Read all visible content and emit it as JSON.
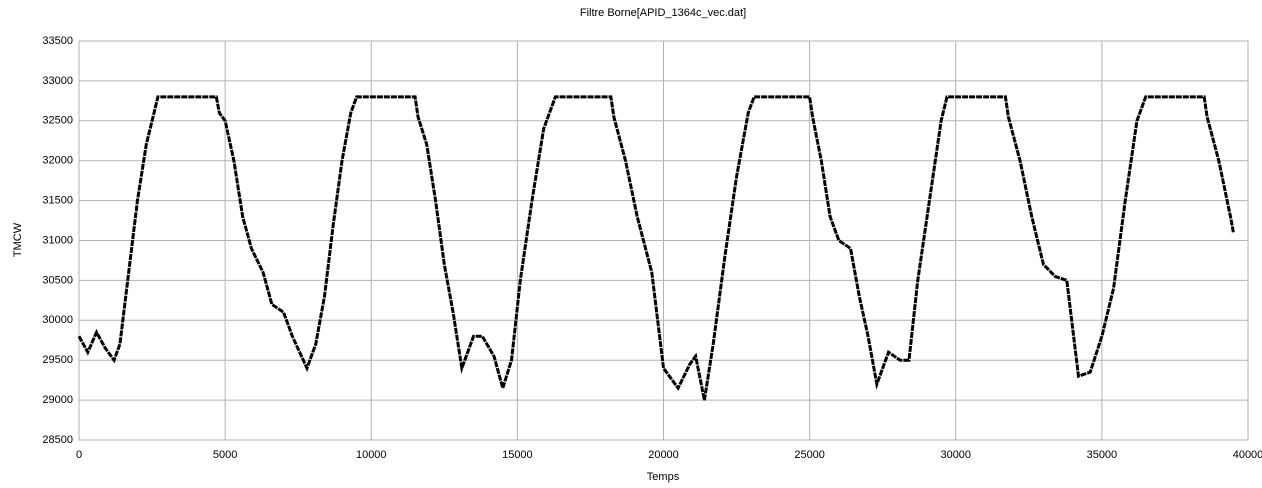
{
  "chart_data": {
    "type": "line",
    "title": "Filtre Borne[APID_1364c_vec.dat]",
    "x_label": "Temps",
    "y_label": "TMCW",
    "x": [
      0,
      300,
      600,
      900,
      1200,
      1400,
      1700,
      2000,
      2300,
      2600,
      2700,
      4700,
      4800,
      5000,
      5300,
      5600,
      5900,
      6300,
      6600,
      7000,
      7300,
      7800,
      8100,
      8400,
      8700,
      9000,
      9300,
      9500,
      11500,
      11600,
      11900,
      12200,
      12500,
      12800,
      13100,
      13500,
      13800,
      14200,
      14500,
      14800,
      15100,
      15500,
      15900,
      16200,
      16300,
      18200,
      18300,
      18700,
      19100,
      19600,
      20000,
      20500,
      20900,
      21100,
      21400,
      21700,
      22100,
      22500,
      22900,
      23100,
      25000,
      25100,
      25400,
      25700,
      26000,
      26400,
      26700,
      27000,
      27300,
      27700,
      28100,
      28400,
      28700,
      29100,
      29500,
      29700,
      31700,
      31800,
      32200,
      32600,
      33000,
      33400,
      33800,
      34200,
      34600,
      35000,
      35400,
      35800,
      36200,
      36500,
      38500,
      38600,
      39000,
      39400,
      39500
    ],
    "series": [
      {
        "name": "TMCW",
        "color": "#000000",
        "values": [
          29800,
          29600,
          29850,
          29650,
          29500,
          29700,
          30600,
          31500,
          32200,
          32650,
          32800,
          32800,
          32600,
          32500,
          32000,
          31300,
          30900,
          30600,
          30200,
          30100,
          29800,
          29400,
          29700,
          30300,
          31200,
          32000,
          32600,
          32800,
          32800,
          32550,
          32200,
          31500,
          30700,
          30100,
          29400,
          29800,
          29800,
          29550,
          29150,
          29500,
          30500,
          31500,
          32400,
          32700,
          32800,
          32800,
          32550,
          32000,
          31300,
          30600,
          29400,
          29150,
          29450,
          29550,
          29000,
          29700,
          30800,
          31800,
          32600,
          32800,
          32800,
          32550,
          32000,
          31300,
          31000,
          30900,
          30300,
          29800,
          29200,
          29600,
          29500,
          29500,
          30500,
          31500,
          32500,
          32800,
          32800,
          32550,
          32000,
          31300,
          30700,
          30550,
          30500,
          29300,
          29350,
          29800,
          30400,
          31500,
          32500,
          32800,
          32800,
          32550,
          32000,
          31300,
          31100
        ]
      }
    ],
    "xlim": [
      0,
      40000
    ],
    "xticks": [
      0,
      5000,
      10000,
      15000,
      20000,
      25000,
      30000,
      35000,
      40000
    ],
    "ylim": [
      28500,
      33500
    ],
    "yticks": [
      28500,
      29000,
      29500,
      30000,
      30500,
      31000,
      31500,
      32000,
      32500,
      33000,
      33500
    ],
    "grid": true
  }
}
